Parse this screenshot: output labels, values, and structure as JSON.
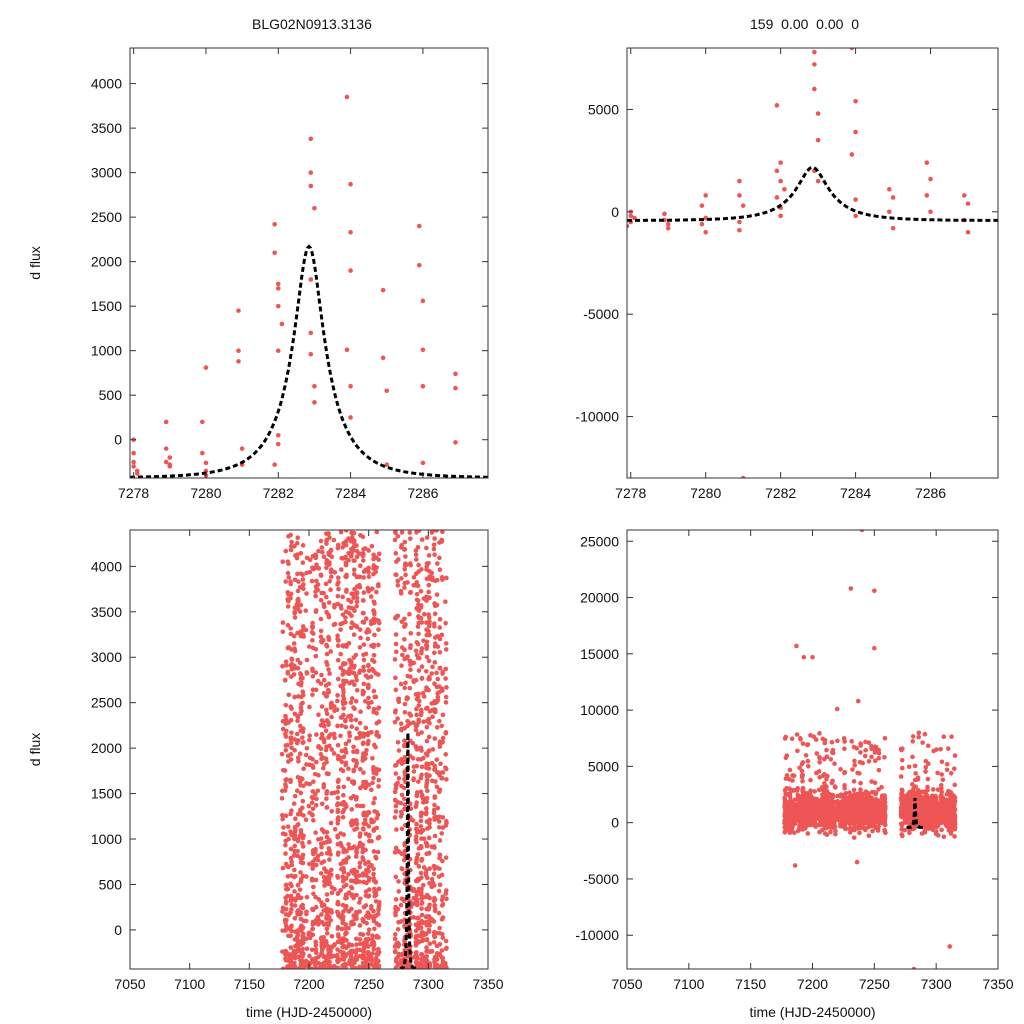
{
  "header": {
    "object_name": "BLG02N0913.3136",
    "stats_text": "159  0.00  0.00  0"
  },
  "colors": {
    "data_points": "#ee5555",
    "model_curve": "#000000",
    "frame": "#333333"
  },
  "chart_data": [
    {
      "id": "top_left",
      "type": "scatter",
      "title": "BLG02N0913.3136",
      "xlabel": "",
      "ylabel": "d flux",
      "xlim": [
        7277.9,
        7287.8
      ],
      "ylim": [
        -430,
        4400
      ],
      "xticks": [
        7278,
        7280,
        7282,
        7284,
        7286
      ],
      "yticks": [
        0,
        500,
        1000,
        1500,
        2000,
        2500,
        3000,
        3500,
        4000
      ],
      "series": [
        {
          "name": "observations",
          "kind": "points",
          "x": [
            7278.0,
            7278.0,
            7278.1,
            7278.0,
            7278.1,
            7278.9,
            7278.9,
            7278.9,
            7279.0,
            7279.0,
            7279.9,
            7279.9,
            7280.0,
            7280.0,
            7280.0,
            7280.9,
            7280.9,
            7280.9,
            7281.0,
            7281.0,
            7281.9,
            7281.9,
            7282.0,
            7282.0,
            7282.0,
            7282.1,
            7282.0,
            7281.9,
            7282.0,
            7282.0,
            7282.9,
            7282.9,
            7282.9,
            7283.0,
            7282.9,
            7282.9,
            7282.9,
            7283.0,
            7283.0,
            7283.9,
            7284.0,
            7284.0,
            7284.0,
            7283.9,
            7284.0,
            7284.0,
            7284.9,
            7284.9,
            7285.0,
            7285.0,
            7285.9,
            7285.9,
            7286.0,
            7286.0,
            7286.0,
            7286.0,
            7286.9,
            7286.9,
            7286.9,
            7278.0,
            7279.0,
            7280.0
          ],
          "y": [
            -150,
            -250,
            -350,
            0,
            -380,
            200,
            -100,
            -250,
            -300,
            -200,
            200,
            -150,
            -350,
            810,
            -260,
            1450,
            1000,
            880,
            -100,
            -280,
            2420,
            2100,
            1750,
            1700,
            1500,
            1300,
            1000,
            -280,
            -50,
            50,
            3380,
            3000,
            2850,
            2600,
            1800,
            1200,
            960,
            600,
            420,
            3850,
            2870,
            2330,
            1900,
            1010,
            600,
            250,
            1680,
            920,
            550,
            -280,
            2400,
            1960,
            1560,
            1010,
            600,
            -260,
            740,
            580,
            -30,
            -300,
            -280,
            -400
          ]
        },
        {
          "name": "model",
          "kind": "dashed-line",
          "model": "paczynski",
          "t0": 7282.85,
          "tE": 1.38,
          "u0": 0.3,
          "base": -431,
          "amp_scale": 1064
        }
      ]
    },
    {
      "id": "top_right",
      "type": "scatter",
      "title": "159  0.00  0.00  0",
      "xlabel": "",
      "ylabel": "",
      "xlim": [
        7277.9,
        7287.8
      ],
      "ylim": [
        -13000,
        8000
      ],
      "xticks": [
        7278,
        7280,
        7282,
        7284,
        7286
      ],
      "yticks": [
        5000,
        0,
        -5000,
        -10000
      ],
      "series": [
        {
          "name": "observations",
          "kind": "points",
          "x": [
            7278.0,
            7278.0,
            7278.1,
            7277.9,
            7278.0,
            7278.9,
            7278.9,
            7279.0,
            7279.0,
            7279.9,
            7280.0,
            7280.0,
            7279.9,
            7280.0,
            7280.9,
            7280.9,
            7281.0,
            7280.9,
            7280.9,
            7281.9,
            7282.0,
            7281.9,
            7282.0,
            7282.1,
            7281.9,
            7282.0,
            7282.0,
            7282.9,
            7282.9,
            7282.9,
            7283.0,
            7283.0,
            7282.9,
            7283.0,
            7283.9,
            7284.0,
            7284.0,
            7283.9,
            7284.0,
            7284.0,
            7284.9,
            7285.0,
            7284.9,
            7285.0,
            7285.9,
            7286.0,
            7285.9,
            7286.0,
            7286.9,
            7287.0,
            7286.9,
            7287.0,
            7281.0
          ],
          "y": [
            -200,
            -500,
            -300,
            -700,
            0,
            -100,
            -400,
            -600,
            -800,
            300,
            800,
            -300,
            -600,
            -1000,
            1500,
            800,
            300,
            -500,
            -900,
            5200,
            2400,
            2000,
            1500,
            1100,
            700,
            200,
            -200,
            7800,
            7200,
            6000,
            4800,
            3500,
            2000,
            1500,
            8000,
            5400,
            3900,
            2800,
            600,
            -200,
            1100,
            700,
            0,
            -800,
            2400,
            1600,
            800,
            0,
            800,
            400,
            -400,
            -1000,
            -13000
          ]
        },
        {
          "name": "model",
          "kind": "dashed-line",
          "model": "paczynski",
          "t0": 7282.85,
          "tE": 1.38,
          "u0": 0.3,
          "base": -431,
          "amp_scale": 1064
        }
      ]
    },
    {
      "id": "bottom_left",
      "type": "scatter",
      "title": "",
      "xlabel": "time (HJD-2450000)",
      "ylabel": "d flux",
      "xlim": [
        7050,
        7350
      ],
      "ylim": [
        -430,
        4400
      ],
      "xticks": [
        7050,
        7100,
        7150,
        7200,
        7250,
        7300,
        7350
      ],
      "yticks": [
        0,
        500,
        1000,
        1500,
        2000,
        2500,
        3000,
        3500,
        4000
      ],
      "series": [
        {
          "name": "observations",
          "kind": "points-dense",
          "x_range": [
            7178,
            7315
          ],
          "y_range": [
            -430,
            4400
          ],
          "count": 2600,
          "gaps": [
            [
              7259,
              7272
            ]
          ],
          "note": "nightly column clusters"
        },
        {
          "name": "model",
          "kind": "dashed-line",
          "model": "paczynski",
          "t0": 7282.85,
          "tE": 1.38,
          "u0": 0.3,
          "base": -431,
          "amp_scale": 1064
        }
      ]
    },
    {
      "id": "bottom_right",
      "type": "scatter",
      "title": "",
      "xlabel": "time (HJD-2450000)",
      "ylabel": "",
      "xlim": [
        7050,
        7350
      ],
      "ylim": [
        -13000,
        26000
      ],
      "xticks": [
        7050,
        7100,
        7150,
        7200,
        7250,
        7300,
        7350
      ],
      "yticks": [
        25000,
        20000,
        15000,
        10000,
        5000,
        0,
        -5000,
        -10000
      ],
      "series": [
        {
          "name": "observations",
          "kind": "points-dense",
          "x_range": [
            7178,
            7315
          ],
          "y_range": [
            -3000,
            8000
          ],
          "count": 2000,
          "gaps": [
            [
              7259,
              7272
            ]
          ],
          "outliers": [
            [
              7231,
              20800
            ],
            [
              7250,
              20600
            ],
            [
              7240,
              26000
            ],
            [
              7250,
              15500
            ],
            [
              7193,
              14700
            ],
            [
              7187,
              15700
            ],
            [
              7200,
              14700
            ],
            [
              7220,
              10100
            ],
            [
              7237,
              10800
            ],
            [
              7300,
              -1000
            ],
            [
              7282,
              -13000
            ],
            [
              7311,
              -11000
            ],
            [
              7236,
              -3500
            ],
            [
              7186,
              -3800
            ]
          ]
        },
        {
          "name": "model",
          "kind": "dashed-line",
          "model": "paczynski",
          "t0": 7282.85,
          "tE": 1.38,
          "u0": 0.3,
          "base": -431,
          "amp_scale": 1064
        }
      ]
    }
  ]
}
